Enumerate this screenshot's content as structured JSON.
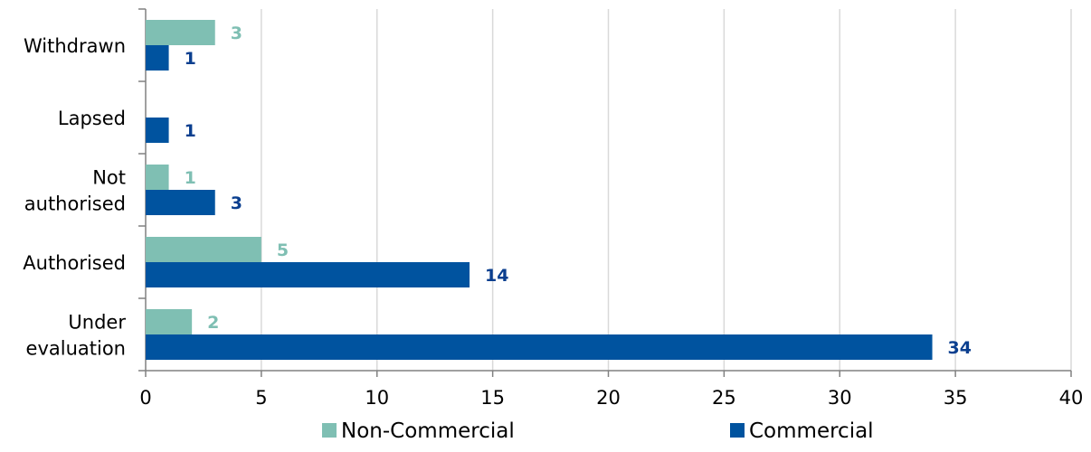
{
  "chart_data": {
    "type": "bar",
    "orientation": "horizontal",
    "categories": [
      "Withdrawn",
      "Lapsed",
      "Not authorised",
      "Authorised",
      "Under evaluation"
    ],
    "category_label_lines": [
      [
        "Withdrawn"
      ],
      [
        "Lapsed"
      ],
      [
        "Not",
        "authorised"
      ],
      [
        "Authorised"
      ],
      [
        "Under",
        "evaluation"
      ]
    ],
    "series": [
      {
        "name": "Non-Commercial",
        "values": [
          3,
          null,
          1,
          5,
          2
        ],
        "color": "#7fbfb3",
        "label_color": "#7fbfb3"
      },
      {
        "name": "Commercial",
        "values": [
          1,
          1,
          3,
          14,
          34
        ],
        "color": "#00539f",
        "label_color": "#0b3f8f"
      }
    ],
    "title": "",
    "xlabel": "",
    "ylabel": "",
    "xlim": [
      0,
      40
    ],
    "xticks": [
      0,
      5,
      10,
      15,
      20,
      25,
      30,
      35,
      40
    ],
    "grid": true,
    "grid_color": "#d9d9d9",
    "data_labels": true,
    "legend_position": "bottom"
  }
}
